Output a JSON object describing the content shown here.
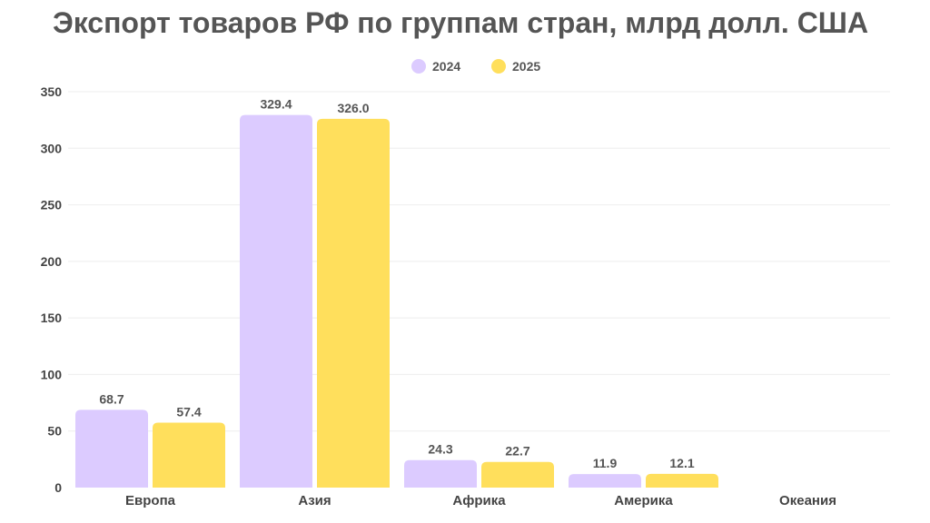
{
  "chart_data": {
    "type": "bar",
    "title": "Экспорт товаров РФ по группам стран, млрд долл. США",
    "xlabel": "",
    "ylabel": "",
    "categories": [
      "Европа",
      "Азия",
      "Африка",
      "Америка",
      "Океания"
    ],
    "series": [
      {
        "name": "2024",
        "color": "#dccbff",
        "values": [
          68.7,
          329.4,
          24.3,
          11.9,
          null
        ],
        "labels": [
          "68.7",
          "329.4",
          "24.3",
          "11.9",
          null
        ]
      },
      {
        "name": "2025",
        "color": "#ffdf5c",
        "values": [
          57.4,
          326.0,
          22.7,
          12.1,
          null
        ],
        "labels": [
          "57.4",
          "326.0",
          "22.7",
          "12.1",
          null
        ]
      }
    ],
    "ylim": [
      0,
      350
    ],
    "yticks": [
      "0",
      "50",
      "100",
      "150",
      "200",
      "250",
      "300",
      "350"
    ],
    "grid": true,
    "legend_position": "top-center"
  }
}
